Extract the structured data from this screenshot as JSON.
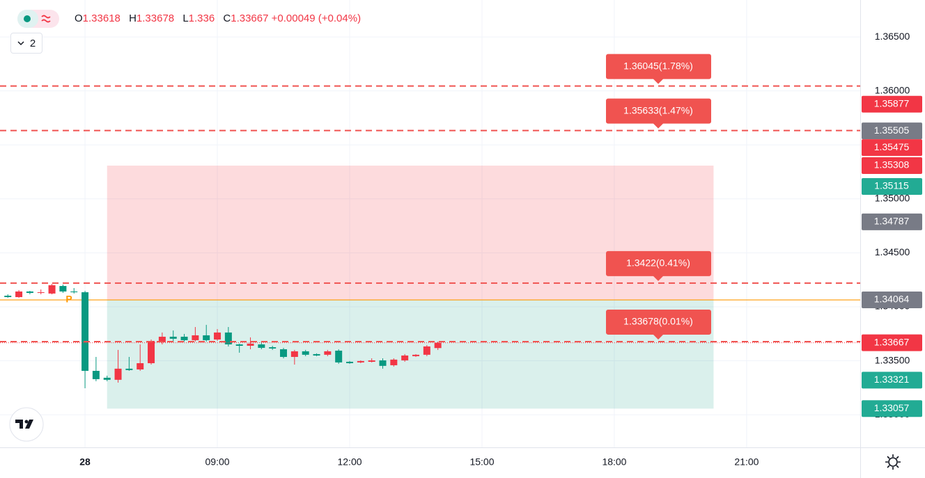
{
  "chart_data": {
    "type": "candlestick",
    "legend": {
      "o_label": "O",
      "h_label": "H",
      "l_label": "L",
      "c_label": "C",
      "change": "+0.00049",
      "change_pct": "(+0.04%)",
      "indicators": "2"
    },
    "up_color": "#f23645",
    "down_color": "#089981",
    "x": [
      -7,
      -6,
      -5,
      -4,
      -3,
      -2,
      -1,
      0,
      1,
      2,
      3,
      4,
      5,
      6,
      7,
      8,
      9,
      10,
      11,
      12,
      13,
      14,
      15,
      16,
      17,
      18,
      19,
      20,
      21,
      22,
      23,
      24,
      25,
      26,
      27,
      28,
      29,
      30,
      31,
      32
    ],
    "open": [
      1.34103,
      1.3409,
      1.34142,
      1.34129,
      1.34123,
      1.34193,
      1.34142,
      1.34135,
      1.33407,
      1.33343,
      1.33324,
      1.33427,
      1.3342,
      1.33478,
      1.33672,
      1.33723,
      1.33723,
      1.33691,
      1.33736,
      1.33697,
      1.33762,
      1.33652,
      1.33639,
      1.33652,
      1.33626,
      1.33607,
      1.33536,
      1.33588,
      1.33562,
      1.33556,
      1.33594,
      1.33491,
      1.33485,
      1.33491,
      1.33504,
      1.33459,
      1.33504,
      1.33543,
      1.33556,
      1.33618
    ],
    "high": [
      1.34116,
      1.34155,
      1.34148,
      1.34161,
      1.34213,
      1.34206,
      1.34174,
      1.34148,
      1.33536,
      1.33362,
      1.33601,
      1.33536,
      1.33652,
      1.33697,
      1.33762,
      1.33781,
      1.33749,
      1.33813,
      1.33833,
      1.33794,
      1.33813,
      1.33659,
      1.33717,
      1.33684,
      1.33639,
      1.3362,
      1.33601,
      1.33601,
      1.33569,
      1.33601,
      1.33607,
      1.33498,
      1.33504,
      1.33523,
      1.33523,
      1.33523,
      1.33562,
      1.33562,
      1.33646,
      1.33678
    ],
    "low": [
      1.34084,
      1.34084,
      1.34116,
      1.34116,
      1.34116,
      1.34129,
      1.34123,
      1.33246,
      1.33311,
      1.33311,
      1.33298,
      1.33407,
      1.33407,
      1.33465,
      1.33652,
      1.33672,
      1.33678,
      1.33678,
      1.33678,
      1.33684,
      1.33633,
      1.33575,
      1.33607,
      1.33607,
      1.33601,
      1.33523,
      1.33465,
      1.33543,
      1.33543,
      1.33543,
      1.33472,
      1.33472,
      1.33478,
      1.33485,
      1.33427,
      1.33446,
      1.33491,
      1.33536,
      1.33543,
      1.336
    ],
    "close": [
      1.3409,
      1.34142,
      1.34129,
      1.34135,
      1.342,
      1.34142,
      1.34135,
      1.33407,
      1.3333,
      1.33324,
      1.33427,
      1.33414,
      1.33478,
      1.33684,
      1.33723,
      1.33704,
      1.33691,
      1.33736,
      1.33691,
      1.33762,
      1.33652,
      1.33639,
      1.33659,
      1.3362,
      1.33614,
      1.33536,
      1.33588,
      1.33556,
      1.33549,
      1.33588,
      1.33485,
      1.33478,
      1.33498,
      1.33504,
      1.33453,
      1.33511,
      1.33549,
      1.33556,
      1.33633,
      1.33667
    ],
    "xlim": [
      -7.71,
      70.3
    ],
    "xticks": [
      {
        "value": 0,
        "label": "28"
      },
      {
        "value": 12,
        "label": "09:00"
      },
      {
        "value": 24,
        "label": "12:00"
      },
      {
        "value": 36,
        "label": "15:00"
      },
      {
        "value": 48,
        "label": "18:00"
      },
      {
        "value": 60,
        "label": "21:00"
      }
    ],
    "ylim": [
      1.32698,
      1.36842
    ],
    "yticks": [
      {
        "value": 1.365,
        "label": "1.36500"
      },
      {
        "value": 1.36,
        "label": "1.36000"
      },
      {
        "value": 1.355,
        "label": "1.35500"
      },
      {
        "value": 1.35,
        "label": "1.35000"
      },
      {
        "value": 1.345,
        "label": "1.34500"
      },
      {
        "value": 1.34,
        "label": "1.34000"
      },
      {
        "value": 1.335,
        "label": "1.33500"
      },
      {
        "value": 1.33,
        "label": "1.33000"
      }
    ],
    "grid": true,
    "levels": [
      {
        "value": 1.36045,
        "label": "1.36045(1.78%)"
      },
      {
        "value": 1.35633,
        "label": "1.35633(1.47%)"
      },
      {
        "value": 1.3422,
        "label": "1.3422(0.41%)"
      },
      {
        "value": 1.33678,
        "label": "1.33678(0.01%)"
      }
    ],
    "level_color": "#f05350",
    "position": {
      "stop": 1.35308,
      "entry": 1.34064,
      "target": 1.33057,
      "x_start": 2,
      "x_end": 57,
      "entry_marker": "P",
      "stop_color": "#f23645",
      "entry_color": "#787b86",
      "target_color": "#22ab94",
      "line_color": "#ff9800"
    },
    "price_badges": [
      {
        "value": 1.35877,
        "color": "#f23645"
      },
      {
        "value": 1.35505,
        "color": "#787b86"
      },
      {
        "value": 1.35475,
        "color": "#f23645"
      },
      {
        "value": 1.35115,
        "color": "#22ab94"
      },
      {
        "value": 1.34787,
        "color": "#787b86"
      },
      {
        "value": 1.33321,
        "color": "#22ab94"
      }
    ]
  }
}
